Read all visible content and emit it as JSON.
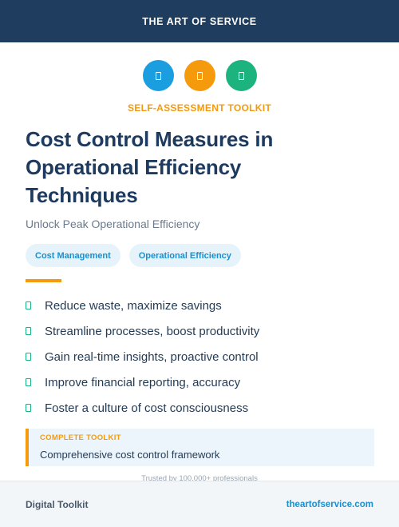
{
  "header": {
    "brand": "THE ART OF SERVICE"
  },
  "icons": [
    {
      "name": "document-icon",
      "color": "#1a9ee0"
    },
    {
      "name": "document-icon",
      "color": "#f59a0c"
    },
    {
      "name": "document-icon",
      "color": "#1db37e"
    }
  ],
  "kicker": "SELF-ASSESSMENT TOOLKIT",
  "title": {
    "line1": "Cost Control Measures in",
    "line2": "Operational Efficiency",
    "line3": "Techniques"
  },
  "subtitle": "Unlock Peak Operational Efficiency",
  "tags": [
    "Cost Management",
    "Operational Efficiency"
  ],
  "benefits": [
    "Reduce waste, maximize savings",
    "Streamline processes, boost productivity",
    "Gain real-time insights, proactive control",
    "Improve financial reporting, accuracy",
    "Foster a culture of cost consciousness"
  ],
  "callout": {
    "label": "COMPLETE TOOLKIT",
    "text": "Comprehensive cost control framework"
  },
  "trusted": "Trusted by 100,000+ professionals",
  "footer": {
    "left": "Digital Toolkit",
    "right": "theartofservice.com"
  },
  "colors": {
    "navy": "#1f3d5f",
    "orange": "#f59a0c",
    "blue": "#1a9ee0",
    "green": "#1db37e"
  }
}
